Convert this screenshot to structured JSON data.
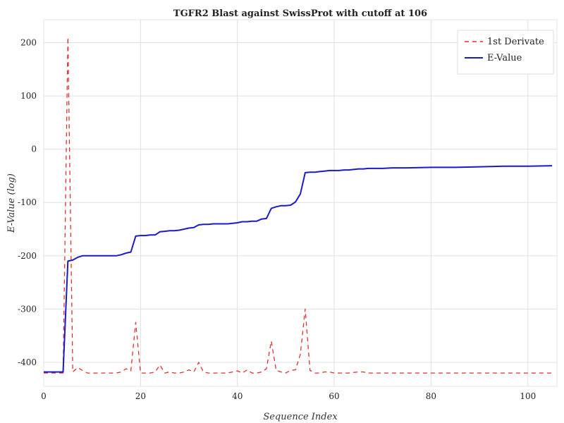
{
  "chart_data": {
    "type": "line",
    "title": "TGFR2 Blast against SwissProt with cutoff at 106",
    "xlabel": "Sequence Index",
    "ylabel": "E-Value (log)",
    "xlim": [
      0,
      106
    ],
    "ylim": [
      -445,
      243
    ],
    "xticks": [
      0,
      20,
      40,
      60,
      80,
      100
    ],
    "yticks": [
      -400,
      -300,
      -200,
      -100,
      0,
      100,
      200
    ],
    "grid": true,
    "legend_position": "top-right",
    "series": [
      {
        "name": "1st Derivate",
        "color": "#e03030",
        "style": "dashed",
        "x": [
          0,
          1,
          2,
          3,
          4,
          5,
          6,
          7,
          8,
          9,
          10,
          11,
          12,
          13,
          14,
          15,
          16,
          17,
          18,
          19,
          20,
          21,
          22,
          23,
          24,
          25,
          26,
          27,
          28,
          29,
          30,
          31,
          32,
          33,
          34,
          35,
          36,
          37,
          38,
          39,
          40,
          41,
          42,
          43,
          44,
          45,
          46,
          47,
          48,
          49,
          50,
          51,
          52,
          53,
          54,
          55,
          56,
          57,
          58,
          59,
          60,
          61,
          62,
          63,
          64,
          65,
          66,
          67,
          68,
          69,
          70,
          75,
          80,
          85,
          90,
          95,
          100,
          105
        ],
        "y": [
          -420,
          -420,
          -420,
          -420,
          -420,
          210,
          -418,
          -410,
          -415,
          -420,
          -420,
          -420,
          -420,
          -420,
          -420,
          -420,
          -418,
          -412,
          -416,
          -325,
          -420,
          -420,
          -420,
          -418,
          -405,
          -420,
          -418,
          -420,
          -420,
          -418,
          -414,
          -418,
          -400,
          -418,
          -420,
          -420,
          -420,
          -420,
          -420,
          -418,
          -416,
          -420,
          -414,
          -420,
          -420,
          -418,
          -412,
          -360,
          -415,
          -418,
          -420,
          -415,
          -414,
          -385,
          -300,
          -415,
          -420,
          -420,
          -418,
          -418,
          -420,
          -420,
          -420,
          -420,
          -419,
          -418,
          -418,
          -420,
          -420,
          -420,
          -420,
          -420,
          -420,
          -420,
          -420,
          -420,
          -420,
          -420
        ]
      },
      {
        "name": "E-Value",
        "color": "#1a1acc",
        "style": "solid",
        "x": [
          0,
          1,
          2,
          3,
          4,
          5,
          6,
          7,
          8,
          9,
          10,
          11,
          12,
          13,
          14,
          15,
          16,
          17,
          18,
          19,
          20,
          21,
          22,
          23,
          24,
          25,
          26,
          27,
          28,
          29,
          30,
          31,
          32,
          33,
          34,
          35,
          36,
          37,
          38,
          39,
          40,
          41,
          42,
          43,
          44,
          45,
          46,
          47,
          48,
          49,
          50,
          51,
          52,
          53,
          54,
          55,
          56,
          57,
          58,
          59,
          60,
          61,
          62,
          63,
          64,
          65,
          66,
          67,
          68,
          69,
          70,
          72,
          75,
          80,
          85,
          90,
          95,
          100,
          105
        ],
        "y": [
          -418,
          -418,
          -418,
          -418,
          -418,
          -210,
          -208,
          -203,
          -200,
          -200,
          -200,
          -200,
          -200,
          -200,
          -200,
          -200,
          -198,
          -195,
          -193,
          -163,
          -162,
          -162,
          -161,
          -161,
          -155,
          -154,
          -153,
          -153,
          -152,
          -150,
          -148,
          -147,
          -142,
          -141,
          -141,
          -140,
          -140,
          -140,
          -140,
          -139,
          -138,
          -136,
          -136,
          -135,
          -135,
          -131,
          -130,
          -111,
          -108,
          -106,
          -106,
          -105,
          -99,
          -84,
          -44,
          -43,
          -43,
          -42,
          -41,
          -40,
          -40,
          -40,
          -39,
          -39,
          -38,
          -37,
          -37,
          -36,
          -36,
          -36,
          -36,
          -35,
          -35,
          -34,
          -34,
          -33,
          -32,
          -32,
          -31
        ]
      }
    ]
  }
}
